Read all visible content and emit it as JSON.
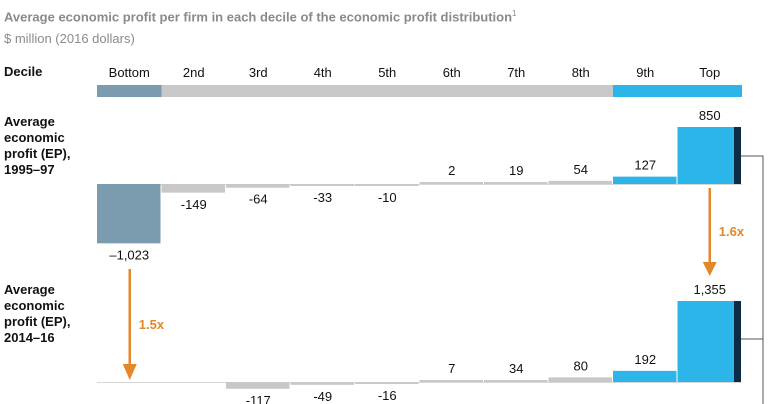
{
  "title": "Average economic profit per firm in each decile of the economic profit distribution",
  "title_footnote": "1",
  "subtitle": "$ million (2016 dollars)",
  "row_labels": {
    "decile": "Decile",
    "ep_1995": [
      "Average",
      "economic",
      "profit (EP),",
      "1995–97"
    ],
    "ep_2014": [
      "Average",
      "economic",
      "profit (EP),",
      "2014–16"
    ]
  },
  "colors": {
    "bottom": "#7b9cae",
    "middle": "#c8c8c8",
    "top": "#2bb5e8",
    "top_edge": "#0e2b45",
    "arrow": "#e4862a",
    "axis": "#555555"
  },
  "chart_data": {
    "type": "bar",
    "categories": [
      "Bottom",
      "2nd",
      "3rd",
      "4th",
      "5th",
      "6th",
      "7th",
      "8th",
      "9th",
      "Top"
    ],
    "series": [
      {
        "name": "Average economic profit (EP), 1995–97",
        "values": [
          -1023,
          -149,
          -64,
          -33,
          -10,
          2,
          19,
          54,
          127,
          850
        ],
        "labels": [
          "–1,023",
          "-149",
          "-64",
          "-33",
          "-10",
          "2",
          "19",
          "54",
          "127",
          "850"
        ]
      },
      {
        "name": "Average economic profit (EP), 2014–16",
        "values": [
          null,
          null,
          -117,
          -49,
          -16,
          7,
          34,
          80,
          192,
          1355
        ],
        "labels": [
          "",
          "",
          "-117",
          "-49",
          "-16",
          "7",
          "34",
          "80",
          "192",
          "1,355"
        ]
      }
    ],
    "annotations": [
      {
        "text": "1.6x",
        "from_category": "Top",
        "description": "Top decile growth"
      },
      {
        "text": "1.5x",
        "from_category": "Bottom",
        "description": "Bottom decile change"
      }
    ],
    "unit": "$ million (2016 dollars)"
  }
}
